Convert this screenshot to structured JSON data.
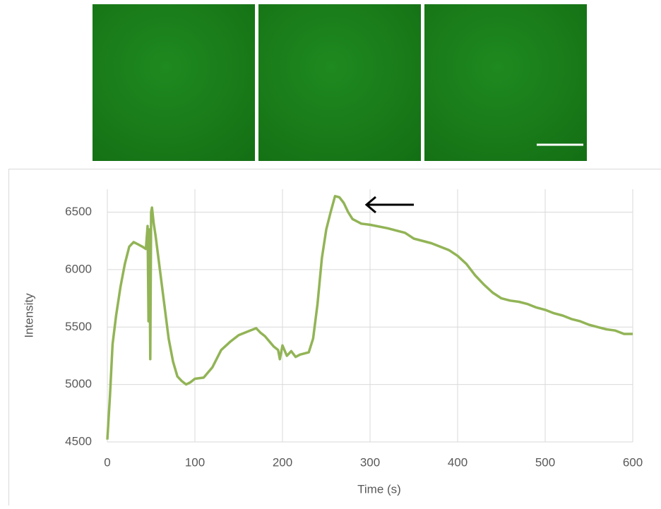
{
  "chart_data": {
    "type": "line",
    "x_label": "Time (s)",
    "y_label": "Intensity",
    "xlim": [
      0,
      600
    ],
    "xticks": [
      0,
      100,
      200,
      300,
      400,
      500,
      600
    ],
    "ylim": [
      4500,
      6700
    ],
    "yticks": [
      4500,
      5000,
      5500,
      6000,
      6500
    ],
    "grid": true,
    "color": "#92b456",
    "x": [
      0,
      3,
      6,
      10,
      15,
      20,
      25,
      30,
      35,
      40,
      44,
      46,
      47,
      48,
      49,
      50,
      51,
      53,
      55,
      60,
      65,
      70,
      75,
      80,
      85,
      90,
      95,
      100,
      110,
      120,
      130,
      140,
      150,
      160,
      170,
      175,
      180,
      190,
      195,
      197,
      200,
      205,
      210,
      215,
      220,
      230,
      235,
      240,
      245,
      250,
      255,
      260,
      265,
      270,
      275,
      280,
      290,
      300,
      320,
      340,
      350,
      370,
      390,
      400,
      410,
      420,
      430,
      440,
      450,
      460,
      470,
      480,
      490,
      500,
      510,
      520,
      530,
      540,
      550,
      560,
      570,
      580,
      590,
      600
    ],
    "values": [
      4520,
      4900,
      5350,
      5600,
      5850,
      6050,
      6200,
      6240,
      6220,
      6200,
      6180,
      6380,
      5550,
      6350,
      5220,
      6500,
      6540,
      6400,
      6300,
      6000,
      5700,
      5400,
      5200,
      5070,
      5030,
      5000,
      5020,
      5050,
      5060,
      5150,
      5300,
      5370,
      5430,
      5460,
      5490,
      5450,
      5420,
      5330,
      5300,
      5220,
      5340,
      5250,
      5290,
      5240,
      5260,
      5280,
      5400,
      5700,
      6100,
      6350,
      6500,
      6640,
      6630,
      6580,
      6500,
      6440,
      6400,
      6390,
      6360,
      6320,
      6270,
      6230,
      6170,
      6120,
      6050,
      5950,
      5870,
      5800,
      5750,
      5730,
      5720,
      5700,
      5670,
      5650,
      5620,
      5600,
      5570,
      5550,
      5520,
      5500,
      5480,
      5470,
      5440,
      5440
    ]
  }
}
